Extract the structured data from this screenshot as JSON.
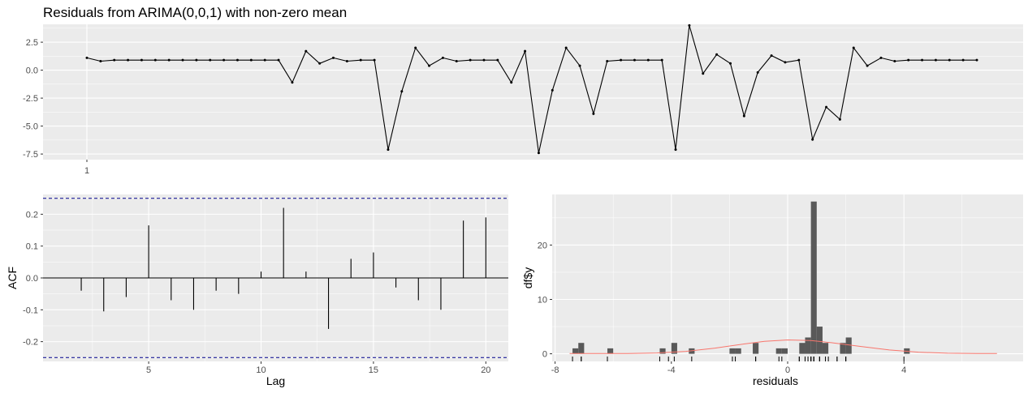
{
  "chart_data": [
    {
      "type": "line",
      "title": "Residuals from ARIMA(0,0,1) with non-zero mean",
      "xlabel": "",
      "ylabel": "",
      "x_tick_labels": [
        "1"
      ],
      "y_ticks": [
        2.5,
        0.0,
        -2.5,
        -5.0,
        -7.5
      ],
      "y_tick_labels": [
        "2.5",
        "0.0",
        "-2.5",
        "-5.0",
        "-7.5"
      ],
      "ylim": [
        -8,
        4.1
      ],
      "grid": true,
      "values": [
        1.1,
        0.8,
        0.9,
        0.9,
        0.9,
        0.9,
        0.9,
        0.9,
        0.9,
        0.9,
        0.9,
        0.9,
        0.9,
        0.9,
        0.9,
        -1.1,
        1.7,
        0.6,
        1.1,
        0.8,
        0.9,
        0.9,
        -7.1,
        -1.9,
        2.0,
        0.4,
        1.1,
        0.8,
        0.9,
        0.9,
        0.9,
        -1.1,
        1.7,
        -7.4,
        -1.8,
        2.0,
        0.4,
        -3.9,
        0.8,
        0.9,
        0.9,
        0.9,
        0.9,
        -7.1,
        4.0,
        -0.3,
        1.4,
        0.6,
        -4.1,
        -0.2,
        1.3,
        0.7,
        0.9,
        -6.2,
        -3.3,
        -4.4,
        2.0,
        0.4,
        1.1,
        0.8,
        0.9,
        0.9,
        0.9,
        0.9,
        0.9,
        0.9
      ]
    },
    {
      "type": "bar",
      "xlabel": "Lag",
      "ylabel": "ACF",
      "lags": [
        2,
        3,
        4,
        5,
        6,
        7,
        8,
        9,
        10,
        11,
        12,
        13,
        14,
        15,
        16,
        17,
        18,
        19,
        20
      ],
      "values": [
        -0.04,
        -0.105,
        -0.06,
        0.165,
        -0.07,
        -0.1,
        -0.04,
        -0.05,
        0.02,
        0.22,
        0.02,
        -0.16,
        0.06,
        0.08,
        -0.03,
        -0.07,
        -0.1,
        0.18,
        0.19
      ],
      "confidence_band": 0.25,
      "x_ticks": [
        5,
        10,
        15,
        20
      ],
      "x_tick_labels": [
        "5",
        "10",
        "15",
        "20"
      ],
      "y_ticks": [
        -0.2,
        -0.1,
        0.0,
        0.1,
        0.2
      ],
      "y_tick_labels": [
        "-0.2",
        "-0.1",
        "0.0",
        "0.1",
        "0.2"
      ],
      "xlim": [
        0.3,
        21
      ],
      "ylim": [
        -0.262,
        0.262
      ],
      "grid": true
    },
    {
      "type": "histogram",
      "xlabel": "residuals",
      "ylabel": "df$y",
      "bin_width": 0.2,
      "bins": [
        {
          "x": -7.3,
          "count": 1
        },
        {
          "x": -7.1,
          "count": 2
        },
        {
          "x": -6.1,
          "count": 1
        },
        {
          "x": -4.3,
          "count": 1
        },
        {
          "x": -3.9,
          "count": 2
        },
        {
          "x": -3.3,
          "count": 1
        },
        {
          "x": -1.9,
          "count": 1
        },
        {
          "x": -1.7,
          "count": 1
        },
        {
          "x": -1.1,
          "count": 2
        },
        {
          "x": -0.3,
          "count": 1
        },
        {
          "x": -0.1,
          "count": 1
        },
        {
          "x": 0.5,
          "count": 2
        },
        {
          "x": 0.7,
          "count": 3
        },
        {
          "x": 0.9,
          "count": 28
        },
        {
          "x": 1.1,
          "count": 5
        },
        {
          "x": 1.3,
          "count": 2
        },
        {
          "x": 1.9,
          "count": 2
        },
        {
          "x": 2.1,
          "count": 3
        },
        {
          "x": 4.1,
          "count": 1
        }
      ],
      "density_curve": [
        [
          -7.5,
          0.05
        ],
        [
          -6.5,
          0.05
        ],
        [
          -5.5,
          0.06
        ],
        [
          -4.5,
          0.15
        ],
        [
          -3.5,
          0.45
        ],
        [
          -2.5,
          1.05
        ],
        [
          -1.5,
          1.8
        ],
        [
          -0.8,
          2.3
        ],
        [
          0,
          2.55
        ],
        [
          0.8,
          2.45
        ],
        [
          1.5,
          2.05
        ],
        [
          2.5,
          1.35
        ],
        [
          3.5,
          0.7
        ],
        [
          4.5,
          0.3
        ],
        [
          5.5,
          0.1
        ],
        [
          6.5,
          0.05
        ],
        [
          7.2,
          0.04
        ]
      ],
      "rug": [
        -7.4,
        -7.1,
        -7.1,
        -6.2,
        -4.4,
        -4.1,
        -3.9,
        -3.3,
        -1.9,
        -1.8,
        -1.1,
        -1.1,
        -0.3,
        -0.2,
        0.4,
        0.4,
        0.6,
        0.6,
        0.7,
        0.8,
        0.8,
        0.8,
        0.8,
        0.9,
        0.9,
        0.9,
        1.1,
        1.1,
        1.1,
        1.3,
        1.4,
        1.7,
        1.7,
        2.0,
        2.0,
        2.0,
        4.0
      ],
      "x_ticks": [
        -8,
        -4,
        0,
        4
      ],
      "x_tick_labels": [
        "-8",
        "-4",
        "0",
        "4"
      ],
      "y_ticks": [
        0,
        10,
        20
      ],
      "y_tick_labels": [
        "0",
        "10",
        "20"
      ],
      "xlim": [
        -8.1,
        8.1
      ],
      "ylim": [
        -1.4,
        29.3
      ],
      "grid": true,
      "colors": {
        "bar": "#595959",
        "density": "#f8766d"
      }
    }
  ],
  "colors": {
    "panel_bg": "#ebebeb",
    "grid": "#ffffff",
    "line": "#000000",
    "band": "#00008b"
  }
}
